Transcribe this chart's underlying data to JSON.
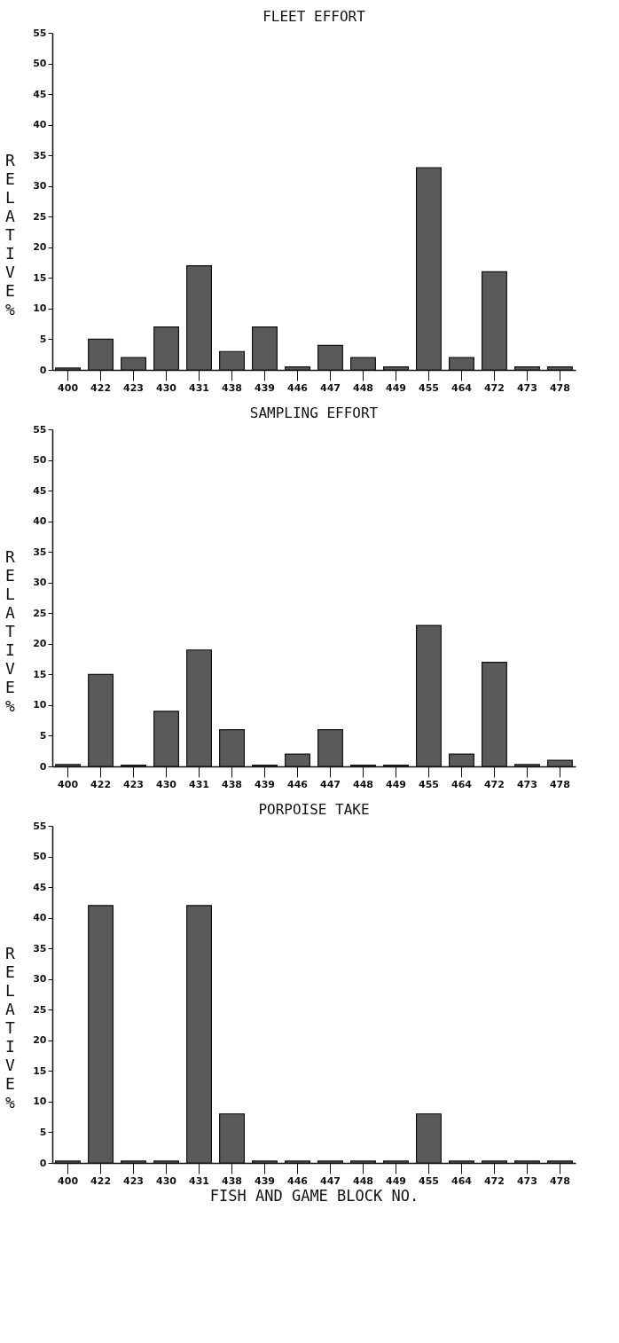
{
  "chart_data": [
    {
      "type": "bar",
      "title": "FLEET EFFORT",
      "ylabel": "RELATIVE %",
      "categories": [
        "400",
        "422",
        "423",
        "430",
        "431",
        "438",
        "439",
        "446",
        "447",
        "448",
        "449",
        "455",
        "464",
        "472",
        "473",
        "478"
      ],
      "values": [
        0.3,
        5,
        2,
        7,
        17,
        3,
        7,
        0.5,
        4,
        2,
        0.5,
        33,
        2,
        16,
        0.5,
        0.5
      ],
      "color": "#5a5a5a",
      "ylim": [
        0,
        55
      ],
      "yticks": [
        0,
        5,
        10,
        15,
        20,
        25,
        30,
        35,
        40,
        45,
        50,
        55
      ],
      "grid": false
    },
    {
      "type": "bar",
      "title": "SAMPLING EFFORT",
      "ylabel": "RELATIVE %",
      "categories": [
        "400",
        "422",
        "423",
        "430",
        "431",
        "438",
        "439",
        "446",
        "447",
        "448",
        "449",
        "455",
        "464",
        "472",
        "473",
        "478"
      ],
      "values": [
        0.3,
        15,
        0.2,
        9,
        19,
        6,
        0.2,
        2,
        6,
        0.2,
        0.2,
        23,
        2,
        17,
        0.3,
        1
      ],
      "color": "#5a5a5a",
      "ylim": [
        0,
        55
      ],
      "yticks": [
        0,
        5,
        10,
        15,
        20,
        25,
        30,
        35,
        40,
        45,
        50,
        55
      ],
      "grid": false
    },
    {
      "type": "bar",
      "title": "PORPOISE TAKE",
      "xlabel": "FISH AND GAME BLOCK NO.",
      "ylabel": "RELATIVE %",
      "categories": [
        "400",
        "422",
        "423",
        "430",
        "431",
        "438",
        "439",
        "446",
        "447",
        "448",
        "449",
        "455",
        "464",
        "472",
        "473",
        "478"
      ],
      "values": [
        0.3,
        42,
        0.3,
        0.3,
        42,
        8,
        0.3,
        0.3,
        0.3,
        0.3,
        0.3,
        8,
        0.3,
        0.3,
        0.3,
        0.3
      ],
      "color": "#5a5a5a",
      "ylim": [
        0,
        55
      ],
      "yticks": [
        0,
        5,
        10,
        15,
        20,
        25,
        30,
        35,
        40,
        45,
        50,
        55
      ],
      "grid": false
    }
  ]
}
